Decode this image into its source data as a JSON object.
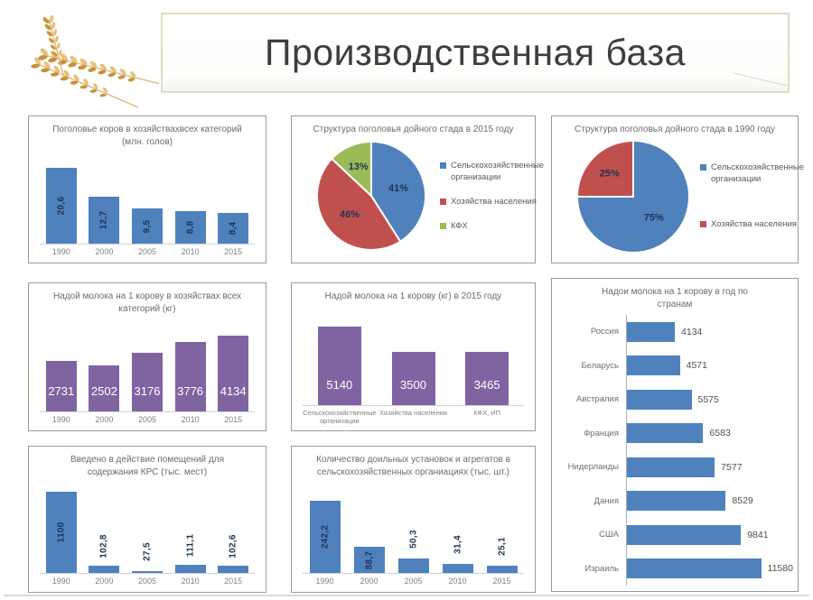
{
  "slide": {
    "title": "Производственная база"
  },
  "decor": {
    "wheat_icon": "wheat-ears-photo"
  },
  "colors": {
    "bar_blue": "#4f81bd",
    "bar_purple": "#8064a2",
    "pie_red": "#c0504d",
    "pie_green": "#9bbb59",
    "title_border": "#dbdec7",
    "value_label_navy": "#1f3456",
    "axis_gray": "#808080"
  },
  "chart_data": [
    {
      "id": "cow-population",
      "type": "bar",
      "title": "Поголовье коров в хозяйствахвсех категорий (млн. голов)",
      "categories": [
        "1990",
        "2000",
        "2005",
        "2010",
        "2015"
      ],
      "values": [
        20.6,
        12.7,
        9.5,
        8.8,
        8.4
      ],
      "labels": [
        "20,6",
        "12,7",
        "9,5",
        "8,8",
        "8,4"
      ],
      "ylim": [
        0,
        21.5
      ],
      "color": "#4f81bd",
      "label_style": "vertical"
    },
    {
      "id": "herd-structure-2015",
      "type": "pie",
      "title": "Структура поголовья дойного стада в 2015 году",
      "slices": [
        {
          "label": "Сельскохозяйственные организации",
          "value": 41,
          "pct_label": "41%",
          "color": "#4f81bd"
        },
        {
          "label": "Хозяйства населения",
          "value": 46,
          "pct_label": "46%",
          "color": "#c0504d"
        },
        {
          "label": "КФХ",
          "value": 13,
          "pct_label": "13%",
          "color": "#9bbb59"
        }
      ],
      "legend_position": "right"
    },
    {
      "id": "herd-structure-1990",
      "type": "pie",
      "title": "Структура поголовья дойного стада в 1990 году",
      "slices": [
        {
          "label": "Сельскохозяйственные организации",
          "value": 75,
          "pct_label": "75%",
          "color": "#4f81bd"
        },
        {
          "label": "Хозяйства населения",
          "value": 25,
          "pct_label": "25%",
          "color": "#c0504d"
        }
      ],
      "legend_position": "right"
    },
    {
      "id": "milk-yield-by-year",
      "type": "bar",
      "title": "Надой молока на 1 корову в хозяйствах всех категорий (кг)",
      "categories": [
        "1990",
        "2000",
        "2005",
        "2010",
        "2015"
      ],
      "values": [
        2731,
        2502,
        3176,
        3776,
        4134
      ],
      "labels": [
        "2731",
        "2502",
        "3176",
        "3776",
        "4134"
      ],
      "ylim": [
        0,
        4400
      ],
      "color": "#8064a2",
      "label_style": "horizontal-inside"
    },
    {
      "id": "milk-yield-2015-by-category",
      "type": "bar",
      "title": "Надой молока на 1 корову (кг) в 2015 году",
      "categories": [
        "Сельскохозяйственные организации",
        "Хозяйства населения",
        "КФХ, ИП"
      ],
      "values": [
        5140,
        3500,
        3465
      ],
      "labels": [
        "5140",
        "3500",
        "3465"
      ],
      "ylim": [
        0,
        5300
      ],
      "color": "#8064a2",
      "label_style": "horizontal-inside"
    },
    {
      "id": "milk-yield-by-country",
      "type": "hbar",
      "title": "Надои молока на 1 корову в год по странам",
      "categories": [
        "Россия",
        "Беларусь",
        "Австралия",
        "Франция",
        "Нидерланды",
        "Дания",
        "США",
        "Израиль"
      ],
      "values": [
        4134,
        4571,
        5575,
        6583,
        7577,
        8529,
        9841,
        11580
      ],
      "labels": [
        "4134",
        "4571",
        "5575",
        "6583",
        "7577",
        "8529",
        "9841",
        "11580"
      ],
      "xlim": [
        0,
        13800
      ],
      "color": "#4f81bd"
    },
    {
      "id": "cattle-housing-commissioned",
      "type": "bar",
      "title": "Введено в действие помещений для содержания КРС (тыс. мест)",
      "categories": [
        "1990",
        "2000",
        "2005",
        "2010",
        "2015"
      ],
      "values": [
        1100,
        102.8,
        27.5,
        111.1,
        102.6
      ],
      "labels": [
        "1100",
        "102,8",
        "27,5",
        "111,1",
        "102,6"
      ],
      "ylim": [
        0,
        1140
      ],
      "color": "#4f81bd",
      "label_style": "vertical"
    },
    {
      "id": "milking-units",
      "type": "bar",
      "title": "Количество доильных установок и агрегатов в сельскохозяйственных органиациях (тыс. шт.)",
      "categories": [
        "1990",
        "2000",
        "2005",
        "2010",
        "2015"
      ],
      "values": [
        242.2,
        88.7,
        50.3,
        31.4,
        25.1
      ],
      "labels": [
        "242,2",
        "88,7",
        "50,3",
        "31,4",
        "25,1"
      ],
      "ylim": [
        0,
        255
      ],
      "color": "#4f81bd",
      "label_style": "vertical"
    }
  ]
}
